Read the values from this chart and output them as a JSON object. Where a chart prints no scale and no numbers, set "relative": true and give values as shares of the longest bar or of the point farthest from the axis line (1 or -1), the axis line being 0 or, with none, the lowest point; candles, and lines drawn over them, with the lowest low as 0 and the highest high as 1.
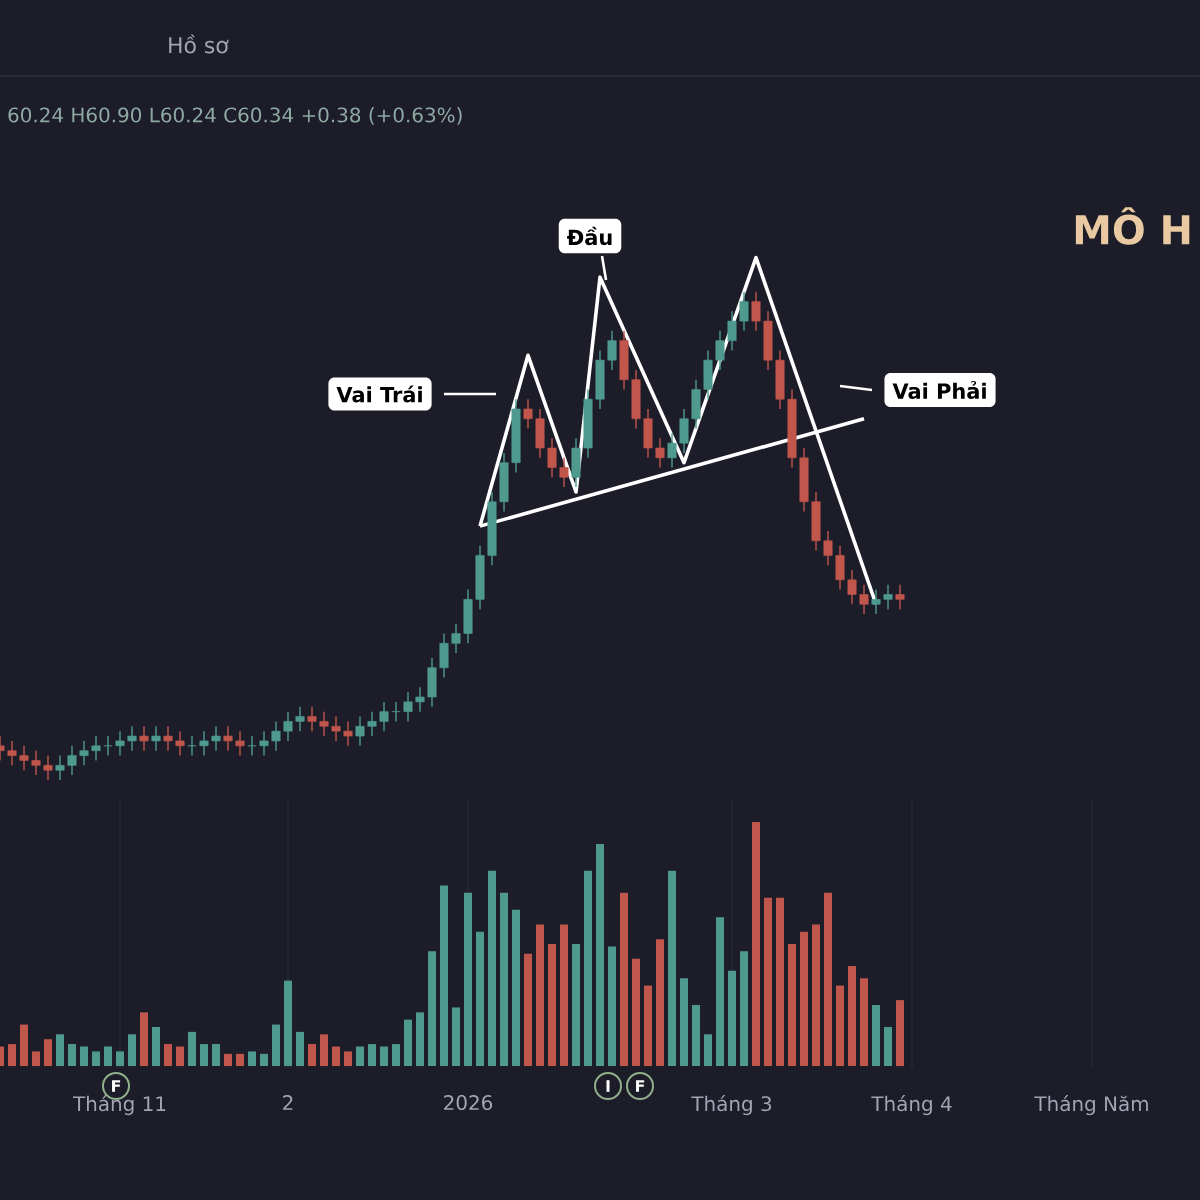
{
  "chart_data": [
    {
      "type": "candlestick",
      "relative": true,
      "categories": [
        null,
        null,
        null,
        null,
        null,
        null,
        null,
        null,
        null,
        null,
        null,
        null,
        null,
        null,
        null,
        null,
        null,
        null,
        null,
        null,
        null,
        null,
        null,
        null,
        null,
        null,
        null,
        null,
        null,
        null,
        null,
        null,
        null,
        null,
        null,
        null,
        null,
        null,
        null,
        null,
        null,
        null,
        null,
        null,
        null,
        null,
        null,
        null,
        null,
        null,
        null,
        null,
        null,
        null,
        null,
        null,
        null,
        null,
        null,
        null,
        null,
        null,
        null,
        null,
        null,
        null,
        null,
        null,
        null,
        null,
        null,
        null,
        null,
        null,
        null,
        null
      ],
      "ohlc": [
        [
          0.07,
          0.09,
          0.04,
          0.06
        ],
        [
          0.06,
          0.08,
          0.03,
          0.05
        ],
        [
          0.05,
          0.07,
          0.02,
          0.04
        ],
        [
          0.04,
          0.06,
          0.01,
          0.03
        ],
        [
          0.03,
          0.05,
          0.0,
          0.02
        ],
        [
          0.02,
          0.05,
          0.0,
          0.03
        ],
        [
          0.03,
          0.07,
          0.01,
          0.05
        ],
        [
          0.05,
          0.08,
          0.03,
          0.06
        ],
        [
          0.06,
          0.09,
          0.04,
          0.07
        ],
        [
          0.07,
          0.09,
          0.05,
          0.07
        ],
        [
          0.07,
          0.1,
          0.05,
          0.08
        ],
        [
          0.08,
          0.11,
          0.06,
          0.09
        ],
        [
          0.09,
          0.11,
          0.06,
          0.08
        ],
        [
          0.08,
          0.11,
          0.06,
          0.09
        ],
        [
          0.09,
          0.11,
          0.06,
          0.08
        ],
        [
          0.08,
          0.1,
          0.05,
          0.07
        ],
        [
          0.07,
          0.09,
          0.05,
          0.07
        ],
        [
          0.07,
          0.1,
          0.05,
          0.08
        ],
        [
          0.08,
          0.11,
          0.06,
          0.09
        ],
        [
          0.09,
          0.11,
          0.06,
          0.08
        ],
        [
          0.08,
          0.1,
          0.05,
          0.07
        ],
        [
          0.07,
          0.09,
          0.05,
          0.07
        ],
        [
          0.07,
          0.1,
          0.05,
          0.08
        ],
        [
          0.08,
          0.12,
          0.06,
          0.1
        ],
        [
          0.1,
          0.14,
          0.08,
          0.12
        ],
        [
          0.12,
          0.15,
          0.1,
          0.13
        ],
        [
          0.13,
          0.15,
          0.1,
          0.12
        ],
        [
          0.12,
          0.14,
          0.09,
          0.11
        ],
        [
          0.11,
          0.13,
          0.08,
          0.1
        ],
        [
          0.1,
          0.12,
          0.07,
          0.09
        ],
        [
          0.09,
          0.13,
          0.07,
          0.11
        ],
        [
          0.11,
          0.14,
          0.09,
          0.12
        ],
        [
          0.12,
          0.16,
          0.1,
          0.14
        ],
        [
          0.14,
          0.16,
          0.12,
          0.14
        ],
        [
          0.14,
          0.18,
          0.12,
          0.16
        ],
        [
          0.16,
          0.19,
          0.14,
          0.17
        ],
        [
          0.17,
          0.25,
          0.15,
          0.23
        ],
        [
          0.23,
          0.3,
          0.21,
          0.28
        ],
        [
          0.28,
          0.32,
          0.26,
          0.3
        ],
        [
          0.3,
          0.39,
          0.28,
          0.37
        ],
        [
          0.37,
          0.48,
          0.35,
          0.46
        ],
        [
          0.46,
          0.59,
          0.44,
          0.57
        ],
        [
          0.57,
          0.67,
          0.55,
          0.65
        ],
        [
          0.65,
          0.78,
          0.63,
          0.76
        ],
        [
          0.76,
          0.78,
          0.72,
          0.74
        ],
        [
          0.74,
          0.76,
          0.66,
          0.68
        ],
        [
          0.68,
          0.7,
          0.62,
          0.64
        ],
        [
          0.64,
          0.66,
          0.6,
          0.62
        ],
        [
          0.62,
          0.7,
          0.6,
          0.68
        ],
        [
          0.68,
          0.8,
          0.66,
          0.78
        ],
        [
          0.78,
          0.88,
          0.76,
          0.86
        ],
        [
          0.86,
          0.92,
          0.84,
          0.9
        ],
        [
          0.9,
          0.92,
          0.8,
          0.82
        ],
        [
          0.82,
          0.84,
          0.72,
          0.74
        ],
        [
          0.74,
          0.76,
          0.66,
          0.68
        ],
        [
          0.68,
          0.7,
          0.64,
          0.66
        ],
        [
          0.66,
          0.71,
          0.64,
          0.69
        ],
        [
          0.69,
          0.76,
          0.67,
          0.74
        ],
        [
          0.74,
          0.82,
          0.72,
          0.8
        ],
        [
          0.8,
          0.88,
          0.78,
          0.86
        ],
        [
          0.86,
          0.92,
          0.84,
          0.9
        ],
        [
          0.9,
          0.96,
          0.88,
          0.94
        ],
        [
          0.94,
          1.0,
          0.92,
          0.98
        ],
        [
          0.98,
          1.0,
          0.92,
          0.94
        ],
        [
          0.94,
          0.96,
          0.84,
          0.86
        ],
        [
          0.86,
          0.88,
          0.76,
          0.78
        ],
        [
          0.78,
          0.8,
          0.64,
          0.66
        ],
        [
          0.66,
          0.68,
          0.55,
          0.57
        ],
        [
          0.57,
          0.59,
          0.47,
          0.49
        ],
        [
          0.49,
          0.51,
          0.44,
          0.46
        ],
        [
          0.46,
          0.48,
          0.39,
          0.41
        ],
        [
          0.41,
          0.43,
          0.36,
          0.38
        ],
        [
          0.38,
          0.4,
          0.34,
          0.36
        ],
        [
          0.36,
          0.39,
          0.34,
          0.37
        ],
        [
          0.37,
          0.4,
          0.35,
          0.38
        ],
        [
          0.38,
          0.4,
          0.35,
          0.37
        ]
      ],
      "colors": [
        "#c0564c",
        "#c0564c",
        "#c0564c",
        "#c0564c",
        "#c0564c",
        "#4f9a8f",
        "#4f9a8f",
        "#4f9a8f",
        "#4f9a8f",
        "#4f9a8f",
        "#4f9a8f",
        "#4f9a8f",
        "#c0564c",
        "#4f9a8f",
        "#c0564c",
        "#c0564c",
        "#4f9a8f",
        "#4f9a8f",
        "#4f9a8f",
        "#c0564c",
        "#c0564c",
        "#4f9a8f",
        "#4f9a8f",
        "#4f9a8f",
        "#4f9a8f",
        "#4f9a8f",
        "#c0564c",
        "#c0564c",
        "#c0564c",
        "#c0564c",
        "#4f9a8f",
        "#4f9a8f",
        "#4f9a8f",
        "#4f9a8f",
        "#4f9a8f",
        "#4f9a8f",
        "#4f9a8f",
        "#4f9a8f",
        "#4f9a8f",
        "#4f9a8f",
        "#4f9a8f",
        "#4f9a8f",
        "#4f9a8f",
        "#4f9a8f",
        "#c0564c",
        "#c0564c",
        "#c0564c",
        "#c0564c",
        "#4f9a8f",
        "#4f9a8f",
        "#4f9a8f",
        "#4f9a8f",
        "#c0564c",
        "#c0564c",
        "#c0564c",
        "#c0564c",
        "#4f9a8f",
        "#4f9a8f",
        "#4f9a8f",
        "#4f9a8f",
        "#4f9a8f",
        "#4f9a8f",
        "#4f9a8f",
        "#c0564c",
        "#c0564c",
        "#c0564c",
        "#c0564c",
        "#c0564c",
        "#c0564c",
        "#c0564c",
        "#c0564c",
        "#c0564c",
        "#c0564c",
        "#4f9a8f",
        "#4f9a8f",
        "#c0564c"
      ],
      "series": [
        {
          "type": "line",
          "color": "#ffffff",
          "values": [
            null,
            null,
            null,
            null,
            null,
            null,
            null,
            null,
            null,
            null,
            null,
            null,
            null,
            null,
            null,
            null,
            null,
            null,
            null,
            null,
            null,
            null,
            null,
            null,
            null,
            null,
            null,
            null,
            null,
            null,
            null,
            null,
            null,
            null,
            null,
            null,
            null,
            null,
            null,
            null,
            0.52,
            null,
            null,
            null,
            0.87,
            null,
            null,
            null,
            0.59,
            null,
            1.03,
            null,
            null,
            null,
            null,
            null,
            null,
            0.65,
            null,
            null,
            null,
            null,
            null,
            1.07,
            null,
            null,
            null,
            null,
            null,
            null,
            null,
            null,
            null,
            0.36,
            null,
            null
          ]
        },
        {
          "type": "line",
          "color": "#ffffff",
          "values": [
            null,
            null,
            null,
            null,
            null,
            null,
            null,
            null,
            null,
            null,
            null,
            null,
            null,
            null,
            null,
            null,
            null,
            null,
            null,
            null,
            null,
            null,
            null,
            null,
            null,
            null,
            null,
            null,
            null,
            null,
            null,
            null,
            null,
            null,
            null,
            null,
            null,
            null,
            null,
            null,
            0.52,
            null,
            null,
            null,
            null,
            null,
            null,
            null,
            null,
            null,
            null,
            null,
            null,
            null,
            null,
            null,
            null,
            null,
            null,
            null,
            null,
            null,
            null,
            null,
            null,
            null,
            null,
            null,
            null,
            null,
            null,
            null,
            0.74,
            null,
            null,
            null
          ]
        }
      ],
      "annotations": [
        "Hồ sơ",
        "60.24 H60.90 L60.24 C60.34 +0.38 (+0.63%)",
        "Vai Trái",
        "Đầu",
        "Vai Phải"
      ]
    },
    {
      "type": "bar",
      "relative": true,
      "categories": [
        null,
        null,
        null,
        null,
        null,
        null,
        null,
        null,
        null,
        null,
        "Tháng 11",
        null,
        null,
        null,
        null,
        null,
        null,
        null,
        null,
        null,
        null,
        null,
        null,
        null,
        "2",
        null,
        null,
        null,
        null,
        null,
        null,
        null,
        null,
        null,
        null,
        null,
        null,
        null,
        null,
        "2026",
        null,
        null,
        null,
        null,
        null,
        null,
        null,
        null,
        null,
        null,
        null,
        null,
        null,
        null,
        null,
        null,
        null,
        null,
        null,
        null,
        null,
        "Tháng 3",
        null,
        null,
        null,
        null,
        null,
        null,
        null,
        null,
        null,
        null,
        null,
        null,
        null,
        null,
        "Tháng 4",
        null,
        null,
        null,
        null,
        null,
        null,
        null,
        null,
        null,
        null,
        null,
        null,
        null,
        null,
        "Tháng Năm"
      ],
      "values": [
        0.08,
        0.09,
        0.17,
        0.06,
        0.11,
        0.13,
        0.09,
        0.08,
        0.06,
        0.08,
        0.06,
        0.13,
        0.22,
        0.16,
        0.09,
        0.08,
        0.14,
        0.09,
        0.09,
        0.05,
        0.05,
        0.06,
        0.05,
        0.17,
        0.35,
        0.14,
        0.09,
        0.13,
        0.08,
        0.06,
        0.08,
        0.09,
        0.08,
        0.09,
        0.19,
        0.22,
        0.47,
        0.74,
        0.24,
        0.71,
        0.55,
        0.8,
        0.71,
        0.64,
        0.46,
        0.58,
        0.5,
        0.58,
        0.5,
        0.8,
        0.91,
        0.49,
        0.71,
        0.44,
        0.33,
        0.52,
        0.8,
        0.36,
        0.25,
        0.13,
        0.61,
        0.39,
        0.47,
        1.0,
        0.69,
        0.69,
        0.5,
        0.55,
        0.58,
        0.71,
        0.33,
        0.41,
        0.36,
        0.25,
        0.16,
        0.27,
        null,
        null,
        null,
        null,
        null,
        null,
        null,
        null,
        null,
        null,
        null,
        null,
        null,
        null,
        null,
        null
      ],
      "colors": [
        "#c0564c",
        "#c0564c",
        "#c0564c",
        "#c0564c",
        "#c0564c",
        "#4f9a8f",
        "#4f9a8f",
        "#4f9a8f",
        "#4f9a8f",
        "#4f9a8f",
        "#4f9a8f",
        "#4f9a8f",
        "#c0564c",
        "#4f9a8f",
        "#c0564c",
        "#c0564c",
        "#4f9a8f",
        "#4f9a8f",
        "#4f9a8f",
        "#c0564c",
        "#c0564c",
        "#4f9a8f",
        "#4f9a8f",
        "#4f9a8f",
        "#4f9a8f",
        "#4f9a8f",
        "#c0564c",
        "#c0564c",
        "#c0564c",
        "#c0564c",
        "#4f9a8f",
        "#4f9a8f",
        "#4f9a8f",
        "#4f9a8f",
        "#4f9a8f",
        "#4f9a8f",
        "#4f9a8f",
        "#4f9a8f",
        "#4f9a8f",
        "#4f9a8f",
        "#4f9a8f",
        "#4f9a8f",
        "#4f9a8f",
        "#4f9a8f",
        "#c0564c",
        "#c0564c",
        "#c0564c",
        "#c0564c",
        "#4f9a8f",
        "#4f9a8f",
        "#4f9a8f",
        "#4f9a8f",
        "#c0564c",
        "#c0564c",
        "#c0564c",
        "#c0564c",
        "#4f9a8f",
        "#4f9a8f",
        "#4f9a8f",
        "#4f9a8f",
        "#4f9a8f",
        "#4f9a8f",
        "#4f9a8f",
        "#c0564c",
        "#c0564c",
        "#c0564c",
        "#c0564c",
        "#c0564c",
        "#c0564c",
        "#c0564c",
        "#c0564c",
        "#c0564c",
        "#c0564c",
        "#4f9a8f",
        "#4f9a8f",
        "#c0564c",
        null,
        null,
        null,
        null,
        null,
        null,
        null,
        null,
        null,
        null,
        null,
        null,
        null,
        null,
        null,
        null
      ],
      "grid": "x",
      "annotations": [
        "F",
        "I",
        "F"
      ]
    },
    {
      "type": "other",
      "title": "MÔ H"
    }
  ]
}
